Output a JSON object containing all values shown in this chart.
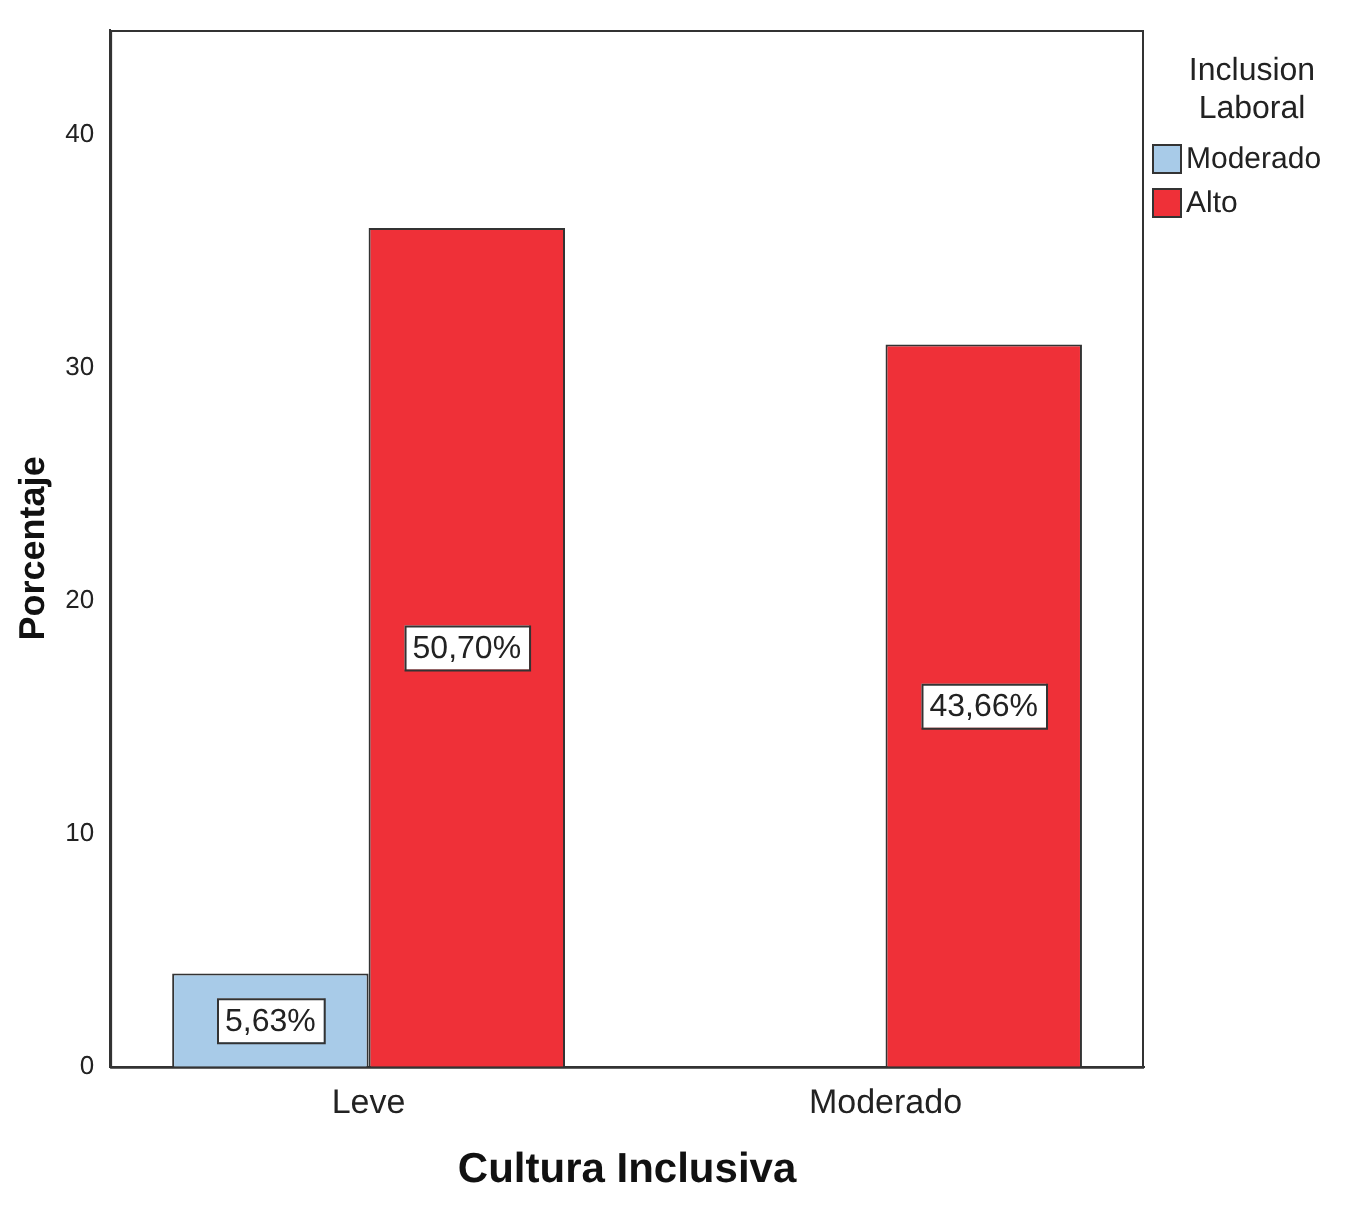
{
  "chart_data": {
    "type": "bar",
    "xlabel": "Cultura Inclusiva",
    "ylabel": "Porcentaje",
    "legend_title": "Inclusion Laboral",
    "categories": [
      "Leve",
      "Moderado"
    ],
    "series": [
      {
        "name": "Moderado",
        "color": "#a8cbe8",
        "values": [
          4,
          null
        ]
      },
      {
        "name": "Alto",
        "color": "#ef3038",
        "values": [
          36,
          31
        ]
      }
    ],
    "annotations": [
      {
        "text": "5,63%",
        "x": "Leve",
        "y": 2
      },
      {
        "text": "50,70%",
        "x": "Leve",
        "y": 18
      },
      {
        "text": "43,66%",
        "x": "Moderado",
        "y": 15.5
      }
    ],
    "ylim": [
      0,
      44.5
    ],
    "yticks": [
      0,
      10,
      20,
      30,
      40
    ],
    "grid": false,
    "legend": "top right"
  }
}
